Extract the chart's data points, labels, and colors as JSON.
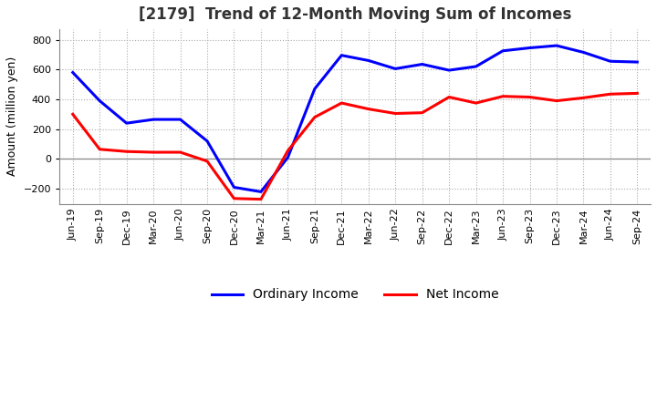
{
  "title": "[2179]  Trend of 12-Month Moving Sum of Incomes",
  "ylabel": "Amount (million yen)",
  "ylim": [
    -300,
    870
  ],
  "yticks": [
    -200,
    0,
    200,
    400,
    600,
    800
  ],
  "background_color": "#ffffff",
  "plot_bg_color": "#ffffff",
  "grid_color": "#aaaaaa",
  "x_labels": [
    "Jun-19",
    "Sep-19",
    "Dec-19",
    "Mar-20",
    "Jun-20",
    "Sep-20",
    "Dec-20",
    "Mar-21",
    "Jun-21",
    "Sep-21",
    "Dec-21",
    "Mar-22",
    "Jun-22",
    "Sep-22",
    "Dec-22",
    "Mar-23",
    "Jun-23",
    "Sep-23",
    "Dec-23",
    "Mar-24",
    "Jun-24",
    "Sep-24"
  ],
  "ordinary_income": [
    580,
    390,
    240,
    265,
    265,
    120,
    -190,
    -220,
    10,
    470,
    695,
    660,
    605,
    635,
    595,
    620,
    725,
    745,
    760,
    715,
    655,
    650
  ],
  "net_income": [
    300,
    65,
    50,
    45,
    45,
    -15,
    -265,
    -270,
    55,
    280,
    375,
    335,
    305,
    310,
    415,
    375,
    420,
    415,
    390,
    410,
    435,
    440
  ],
  "ordinary_color": "#0000ff",
  "net_color": "#ff0000",
  "line_width": 2.2,
  "title_fontsize": 12,
  "ylabel_fontsize": 9,
  "tick_fontsize": 8
}
